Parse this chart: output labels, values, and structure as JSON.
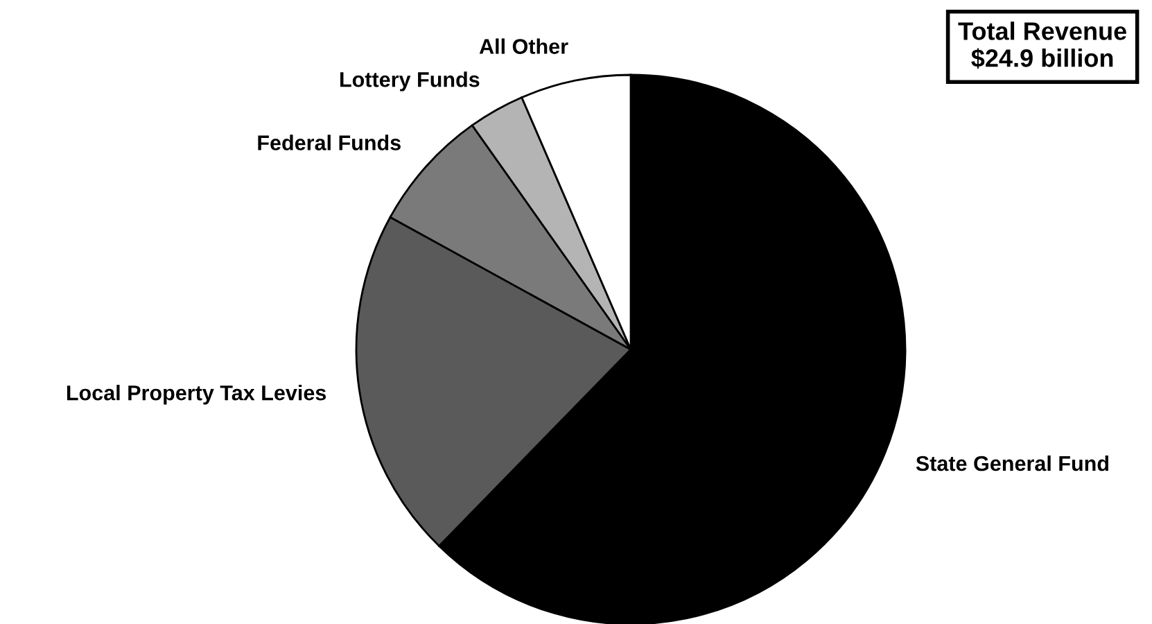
{
  "chart_data": {
    "type": "pie",
    "title": "Total Revenue\n$24.9 billion",
    "categories": [
      "State General Fund",
      "Local Property Tax Levies",
      "Federal Funds",
      "Lottery Funds",
      "All Other"
    ],
    "values": [
      62.3,
      20.7,
      7.2,
      3.3,
      6.5
    ],
    "colors": [
      "#000000",
      "#5a5a5a",
      "#7a7a7a",
      "#b4b4b4",
      "#ffffff"
    ]
  }
}
